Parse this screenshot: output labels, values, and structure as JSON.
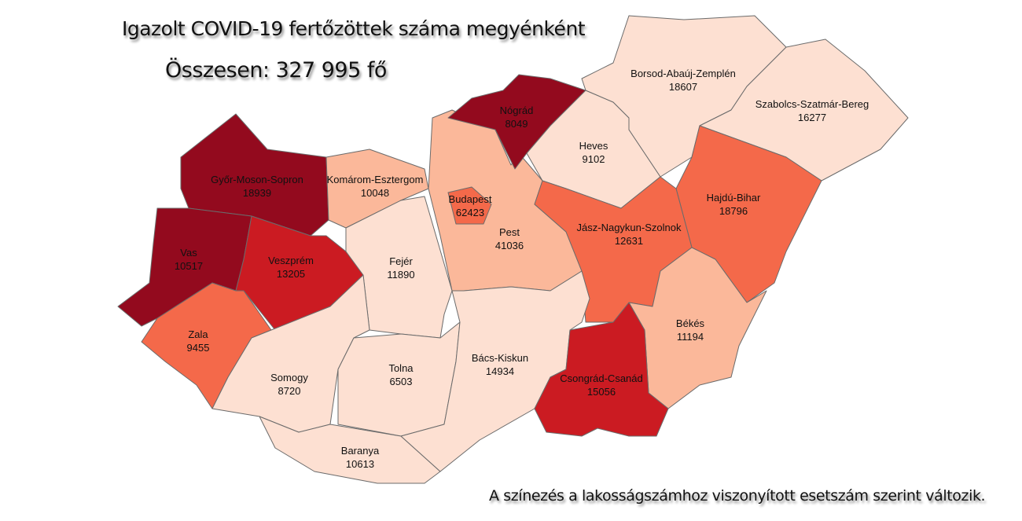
{
  "title": "Igazolt COVID-19 fertőzöttek száma megyénként",
  "total": "Összesen: 327 995 fő",
  "note": "A színezés a lakosságszámhoz viszonyított esetszám szerint változik.",
  "colors": {
    "level1": "#fde0d2",
    "level2": "#fbb89a",
    "level3": "#f4694a",
    "level4": "#cb1b22",
    "level5": "#930a1e",
    "border": "#6b6b6b"
  },
  "counties": [
    {
      "name": "Győr-Moson-Sopron",
      "value": "18939",
      "level": "level5"
    },
    {
      "name": "Vas",
      "value": "10517",
      "level": "level5"
    },
    {
      "name": "Veszprém",
      "value": "13205",
      "level": "level4"
    },
    {
      "name": "Zala",
      "value": "9455",
      "level": "level3"
    },
    {
      "name": "Komárom-Esztergom",
      "value": "10048",
      "level": "level2"
    },
    {
      "name": "Fejér",
      "value": "11890",
      "level": "level1"
    },
    {
      "name": "Somogy",
      "value": "8720",
      "level": "level1"
    },
    {
      "name": "Tolna",
      "value": "6503",
      "level": "level1"
    },
    {
      "name": "Baranya",
      "value": "10613",
      "level": "level1"
    },
    {
      "name": "Pest",
      "value": "41036",
      "level": "level2"
    },
    {
      "name": "Budapest",
      "value": "62423",
      "level": "level3"
    },
    {
      "name": "Nógrád",
      "value": "8049",
      "level": "level5"
    },
    {
      "name": "Heves",
      "value": "9102",
      "level": "level1"
    },
    {
      "name": "Borsod-Abaúj-Zemplén",
      "value": "18607",
      "level": "level1"
    },
    {
      "name": "Szabolcs-Szatmár-Bereg",
      "value": "16277",
      "level": "level1"
    },
    {
      "name": "Hajdú-Bihar",
      "value": "18796",
      "level": "level3"
    },
    {
      "name": "Jász-Nagykun-Szolnok",
      "value": "12631",
      "level": "level3"
    },
    {
      "name": "Békés",
      "value": "11194",
      "level": "level2"
    },
    {
      "name": "Bács-Kiskun",
      "value": "14934",
      "level": "level1"
    },
    {
      "name": "Csongrád-Csanád",
      "value": "15056",
      "level": "level4"
    }
  ]
}
